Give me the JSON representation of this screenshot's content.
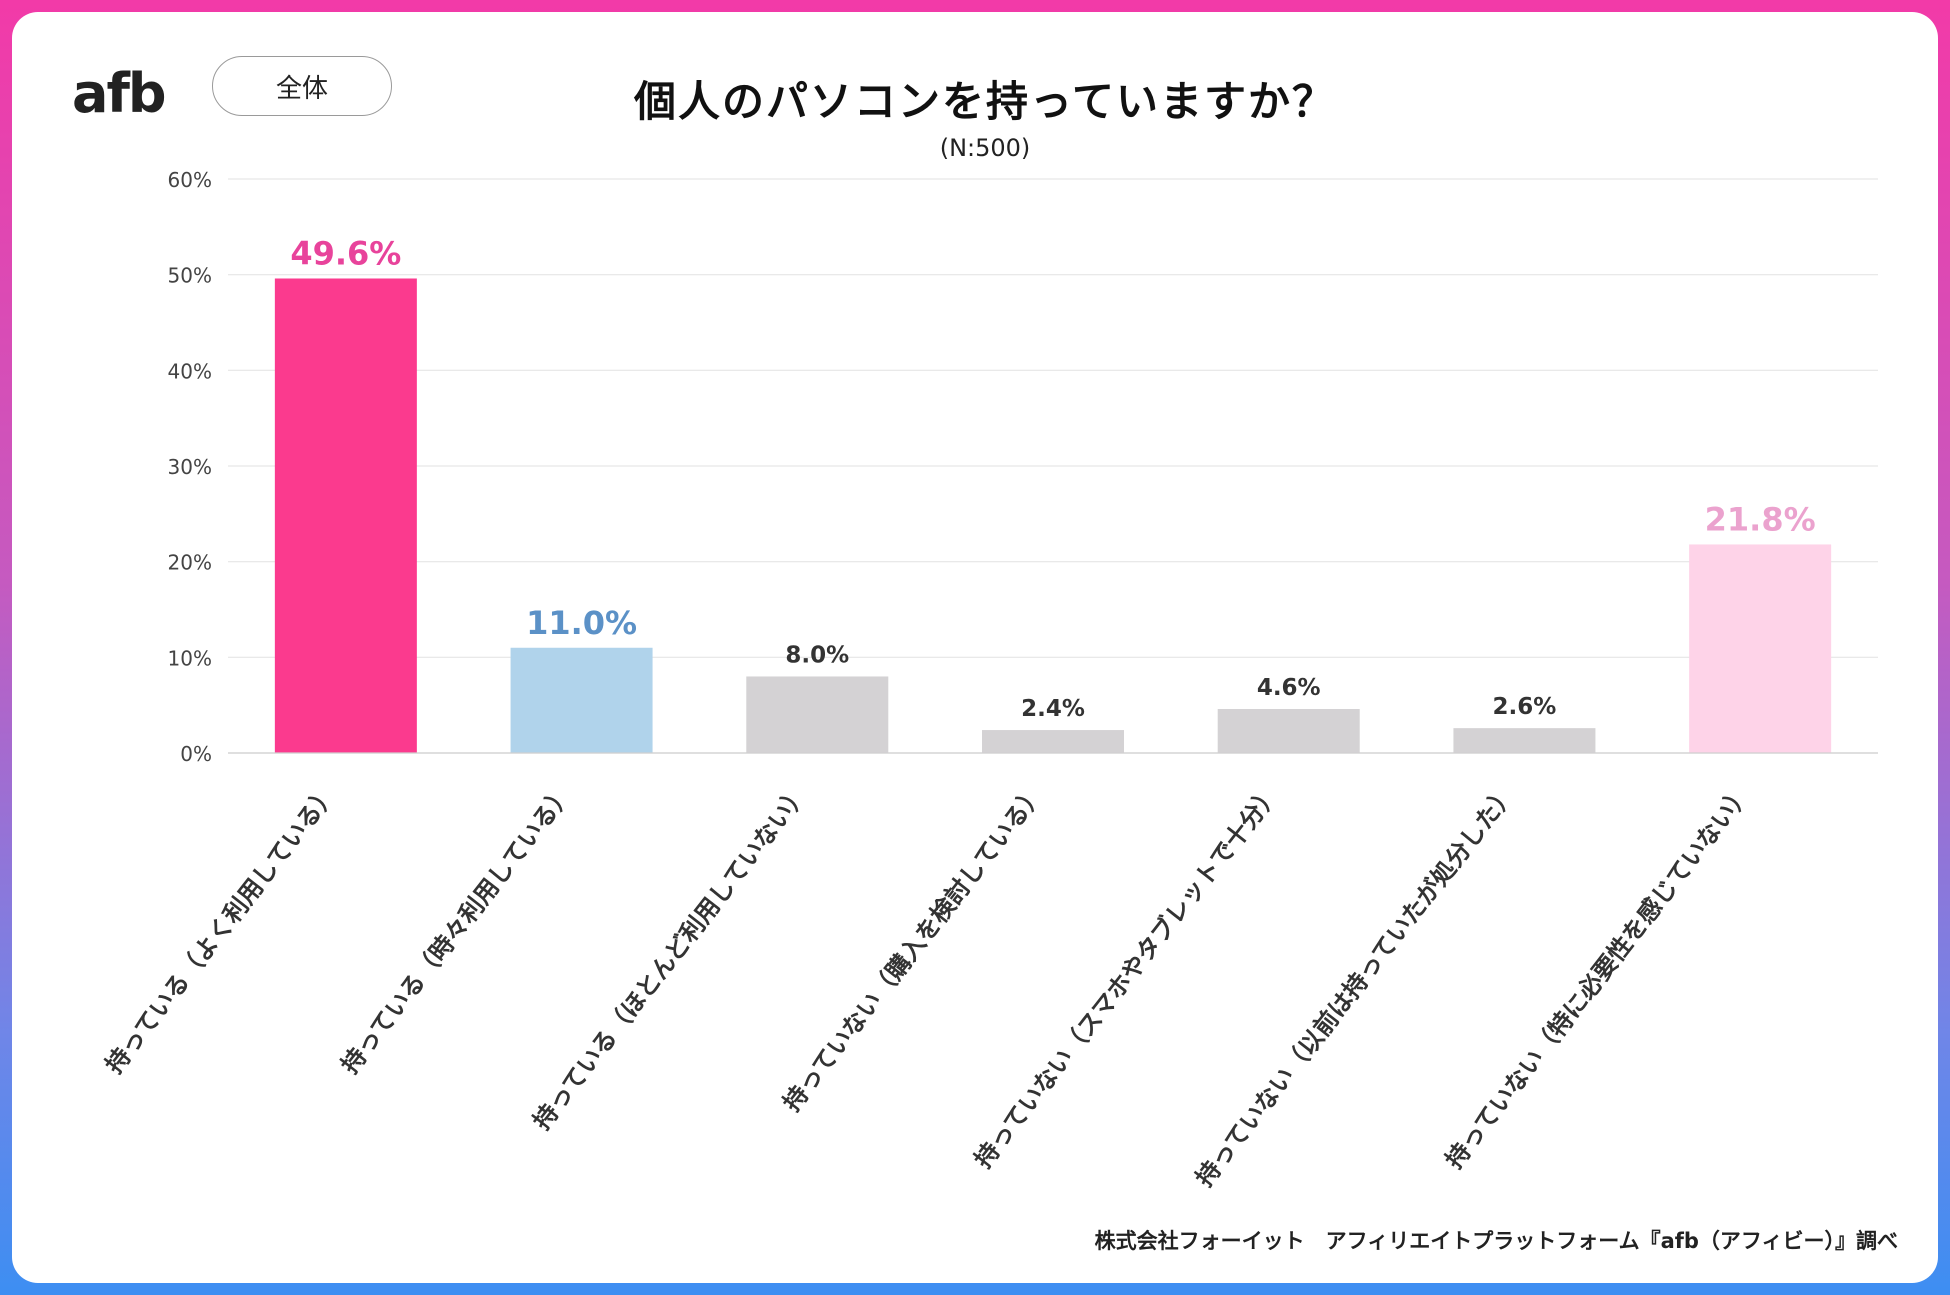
{
  "header": {
    "brand": "afb",
    "scope_label": "全体",
    "title": "個人のパソコンを持っていますか？",
    "subtitle": "(N:500)"
  },
  "colors": {
    "frame_top": "#f23aa8",
    "frame_bottom": "#3d8ef2",
    "logo_text": "#222222",
    "logo_accent": "#e8439b"
  },
  "chart_data": {
    "type": "bar",
    "title": "個人のパソコンを持っていますか？",
    "subtitle": "(N:500)",
    "xlabel": "",
    "ylabel": "",
    "ylim": [
      0,
      60
    ],
    "yticks": [
      0,
      10,
      20,
      30,
      40,
      50,
      60
    ],
    "ytick_labels": [
      "0%",
      "10%",
      "20%",
      "30%",
      "40%",
      "50%",
      "60%"
    ],
    "grid": true,
    "categories": [
      "持っている（よく利用している）",
      "持っている（時々利用している）",
      "持っている（ほとんど利用していない）",
      "持っていない（購入を検討している）",
      "持っていない（スマホやタブレットで十分）",
      "持っていない（以前は持っていたが処分した）",
      "持っていない（特に必要性を感じていない）"
    ],
    "values": [
      49.6,
      11.0,
      8.0,
      2.4,
      4.6,
      2.6,
      21.8
    ],
    "value_labels": [
      "49.6%",
      "11.0%",
      "8.0%",
      "2.4%",
      "4.6%",
      "2.6%",
      "21.8%"
    ],
    "bar_colors": [
      "#fb3a8e",
      "#b0d3eb",
      "#d4d2d4",
      "#d4d2d4",
      "#d4d2d4",
      "#d4d2d4",
      "#fed3e8"
    ],
    "label_colors": [
      "#e8439b",
      "#5b91c7",
      "#333333",
      "#333333",
      "#333333",
      "#333333",
      "#eba2ce"
    ]
  },
  "footer": {
    "source": "株式会社フォーイット　アフィリエイトプラットフォーム『afb（アフィビー）』調べ"
  }
}
